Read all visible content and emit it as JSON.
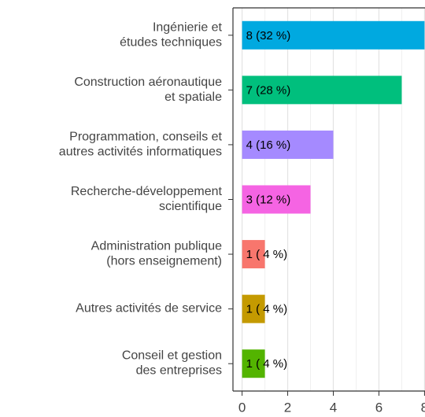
{
  "chart_data": {
    "type": "bar",
    "orientation": "horizontal",
    "categories": [
      "Ingénierie et\nétudes techniques",
      "Construction aéronautique\net spatiale",
      "Programmation, conseils et\nautres activités informatiques",
      "Recherche-développement\nscientifique",
      "Administration publique\n(hors enseignement)",
      "Autres activités de service",
      "Conseil et gestion\ndes entreprises"
    ],
    "values": [
      8,
      7,
      4,
      3,
      1,
      1,
      1
    ],
    "value_labels": [
      "8 (32 %)",
      "7 (28 %)",
      "4 (16 %)",
      "3 (12 %)",
      "1 ( 4 %)",
      "1 ( 4 %)",
      "1 ( 4 %)"
    ],
    "colors": [
      "#00A9E0",
      "#00BF7D",
      "#A58AFF",
      "#F564E3",
      "#F8766D",
      "#C49A00",
      "#53B400"
    ],
    "xlim": [
      -0.4,
      8.4
    ],
    "xticks": [
      0,
      2,
      4,
      6,
      8
    ],
    "grid": true
  }
}
